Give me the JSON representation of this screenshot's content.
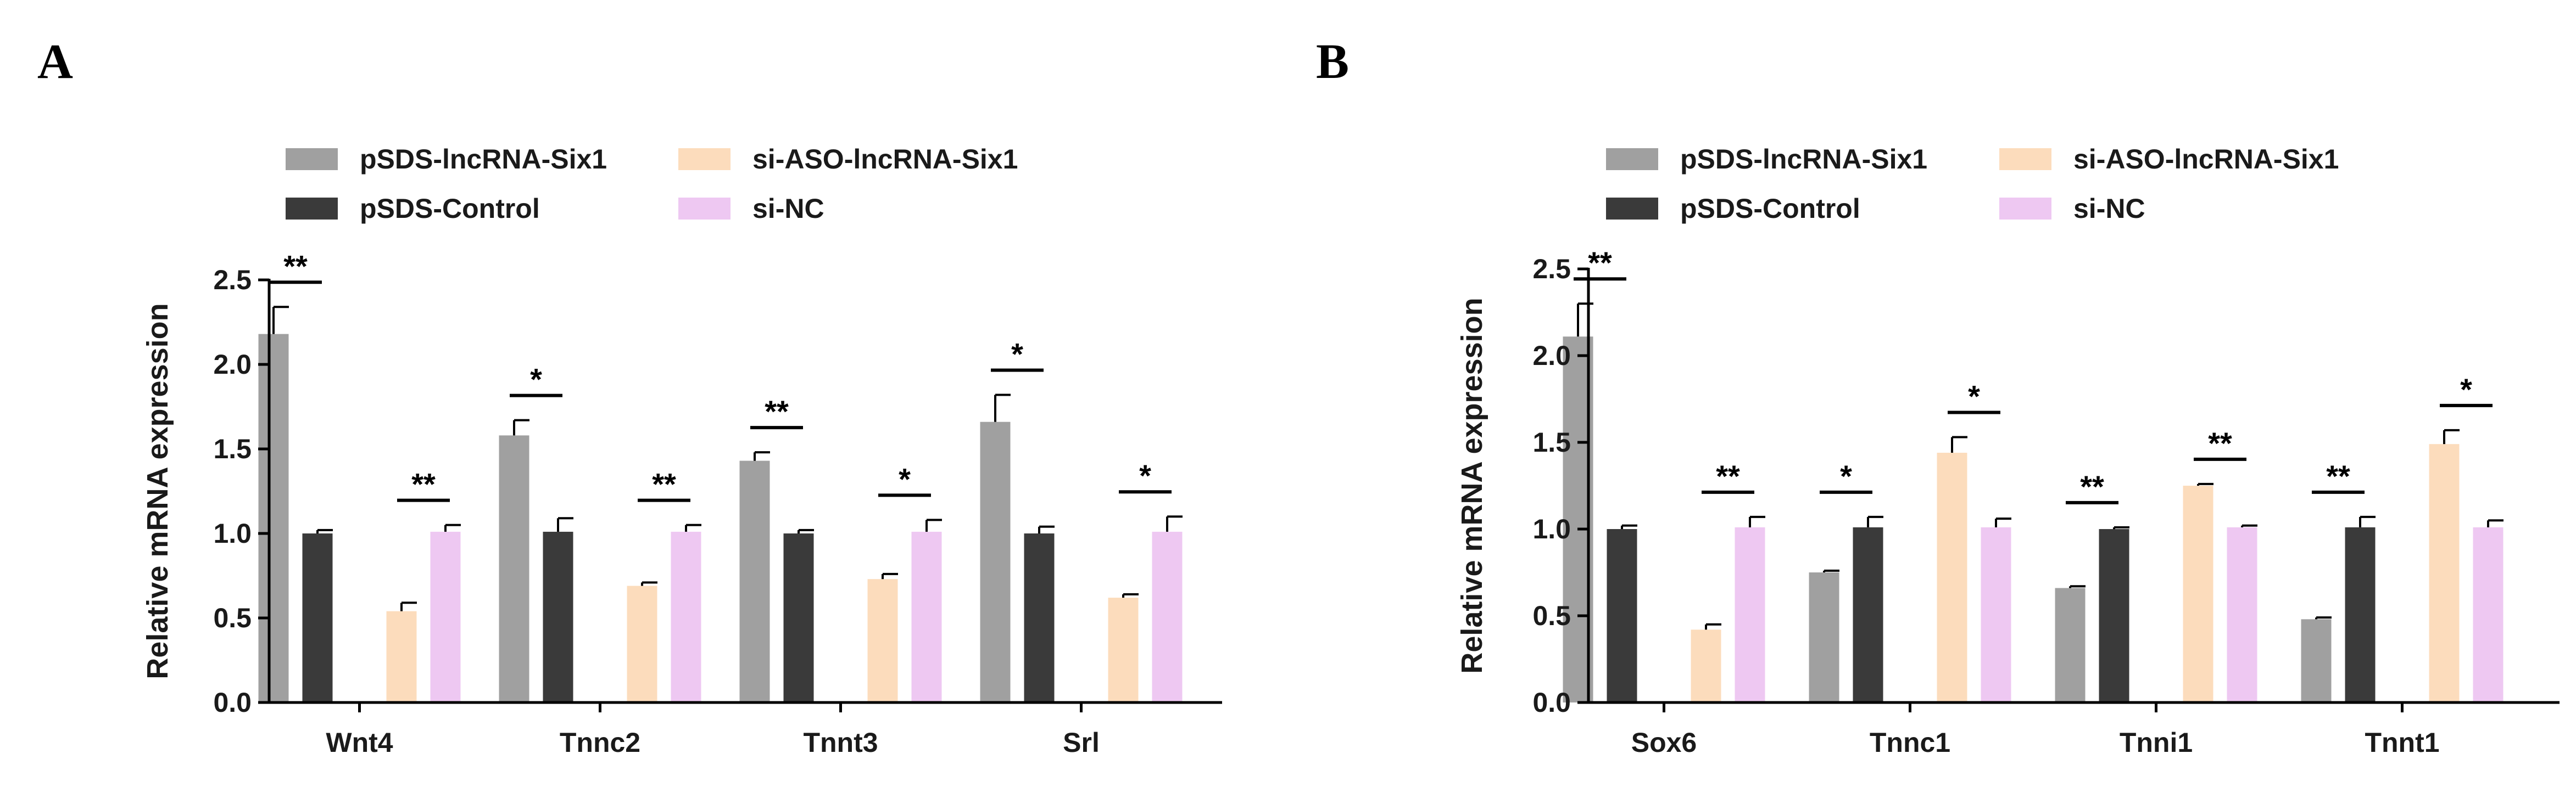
{
  "chart_data": [
    {
      "panel": "A",
      "type": "bar",
      "ylabel": "Relative  mRNA expression",
      "xlabel": "",
      "ylim": [
        0,
        2.5
      ],
      "yticks": [
        "0.0",
        "0.5",
        "1.0",
        "1.5",
        "2.0",
        "2.5"
      ],
      "categories": [
        "Wnt4",
        "Tnnc2",
        "Tnnt3",
        "Srl"
      ],
      "series": [
        {
          "name": "pSDS-lncRNA-Six1",
          "color": "#a0a0a0",
          "values": [
            2.18,
            1.58,
            1.43,
            1.66
          ],
          "errors": [
            0.16,
            0.09,
            0.05,
            0.16
          ]
        },
        {
          "name": "pSDS-Control",
          "color": "#3a3a3a",
          "values": [
            1.0,
            1.01,
            1.0,
            1.0
          ],
          "errors": [
            0.02,
            0.08,
            0.02,
            0.04
          ]
        },
        {
          "name": "si-ASO-lncRNA-Six1",
          "color": "#fcdcbc",
          "values": [
            0.54,
            0.69,
            0.73,
            0.62
          ],
          "errors": [
            0.05,
            0.02,
            0.03,
            0.02
          ]
        },
        {
          "name": "si-NC",
          "color": "#eec8f2",
          "values": [
            1.01,
            1.01,
            1.01,
            1.01
          ],
          "errors": [
            0.04,
            0.04,
            0.07,
            0.09
          ]
        }
      ],
      "significance": [
        {
          "category": 0,
          "pair": "first",
          "label": "**"
        },
        {
          "category": 0,
          "pair": "second",
          "label": "**"
        },
        {
          "category": 1,
          "pair": "first",
          "label": "*"
        },
        {
          "category": 1,
          "pair": "second",
          "label": "**"
        },
        {
          "category": 2,
          "pair": "first",
          "label": "**"
        },
        {
          "category": 2,
          "pair": "second",
          "label": "*"
        },
        {
          "category": 3,
          "pair": "first",
          "label": "*"
        },
        {
          "category": 3,
          "pair": "second",
          "label": "*"
        }
      ]
    },
    {
      "panel": "B",
      "type": "bar",
      "ylabel": "Relative  mRNA expression",
      "xlabel": "",
      "ylim": [
        0,
        2.5
      ],
      "yticks": [
        "0.0",
        "0.5",
        "1.0",
        "1.5",
        "2.0",
        "2.5"
      ],
      "categories": [
        "Sox6",
        "Tnnc1",
        "Tnni1",
        "Tnnt1"
      ],
      "series": [
        {
          "name": "pSDS-lncRNA-Six1",
          "color": "#a0a0a0",
          "values": [
            2.11,
            0.75,
            0.66,
            0.48
          ],
          "errors": [
            0.19,
            0.01,
            0.01,
            0.01
          ]
        },
        {
          "name": "pSDS-Control",
          "color": "#3a3a3a",
          "values": [
            1.0,
            1.01,
            1.0,
            1.01
          ],
          "errors": [
            0.02,
            0.06,
            0.01,
            0.06
          ]
        },
        {
          "name": "si-ASO-lncRNA-Six1",
          "color": "#fcdcbc",
          "values": [
            0.42,
            1.44,
            1.25,
            1.49
          ],
          "errors": [
            0.03,
            0.09,
            0.01,
            0.08
          ]
        },
        {
          "name": "si-NC",
          "color": "#eec8f2",
          "values": [
            1.01,
            1.01,
            1.01,
            1.01
          ],
          "errors": [
            0.06,
            0.05,
            0.01,
            0.04
          ]
        }
      ],
      "significance": [
        {
          "category": 0,
          "pair": "first",
          "label": "**"
        },
        {
          "category": 0,
          "pair": "second",
          "label": "**"
        },
        {
          "category": 1,
          "pair": "first",
          "label": "*"
        },
        {
          "category": 1,
          "pair": "second",
          "label": "*"
        },
        {
          "category": 2,
          "pair": "first",
          "label": "**"
        },
        {
          "category": 2,
          "pair": "second",
          "label": "**"
        },
        {
          "category": 3,
          "pair": "first",
          "label": "**"
        },
        {
          "category": 3,
          "pair": "second",
          "label": "*"
        }
      ]
    }
  ]
}
